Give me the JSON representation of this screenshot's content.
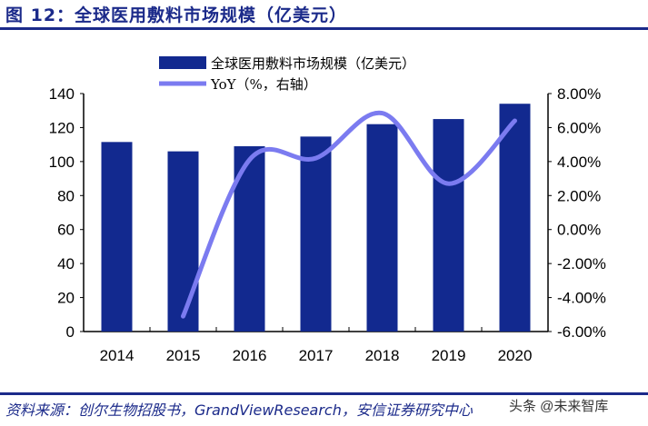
{
  "title": "图 12：全球医用敷料市场规模（亿美元）",
  "source": "资料来源：创尔生物招股书，GrandViewResearch，安信证券研究中心",
  "watermark": "头条 @未来智库",
  "chart_data": {
    "type": "bar+line",
    "categories": [
      "2014",
      "2015",
      "2016",
      "2017",
      "2018",
      "2019",
      "2020"
    ],
    "series": [
      {
        "name": "全球医用敷料市场规模（亿美元）",
        "type": "bar",
        "axis": "left",
        "color": "#12298f",
        "values": [
          111.5,
          106,
          109,
          114.7,
          122,
          125,
          134
        ]
      },
      {
        "name": "YoY（%，右轴）",
        "type": "line",
        "axis": "right",
        "color": "#7b7bf0",
        "smooth": true,
        "values": [
          null,
          -5.1,
          4.1,
          4.2,
          6.85,
          2.7,
          6.4
        ]
      }
    ],
    "left_axis": {
      "ylim": [
        0,
        140
      ],
      "ticks": [
        "0",
        "20",
        "40",
        "60",
        "80",
        "100",
        "120",
        "140"
      ]
    },
    "right_axis": {
      "ylim": [
        -6,
        8
      ],
      "ticks": [
        "-6.00%",
        "-4.00%",
        "-2.00%",
        "0.00%",
        "2.00%",
        "4.00%",
        "6.00%",
        "8.00%"
      ]
    },
    "legend": "top-center",
    "grid": false
  }
}
